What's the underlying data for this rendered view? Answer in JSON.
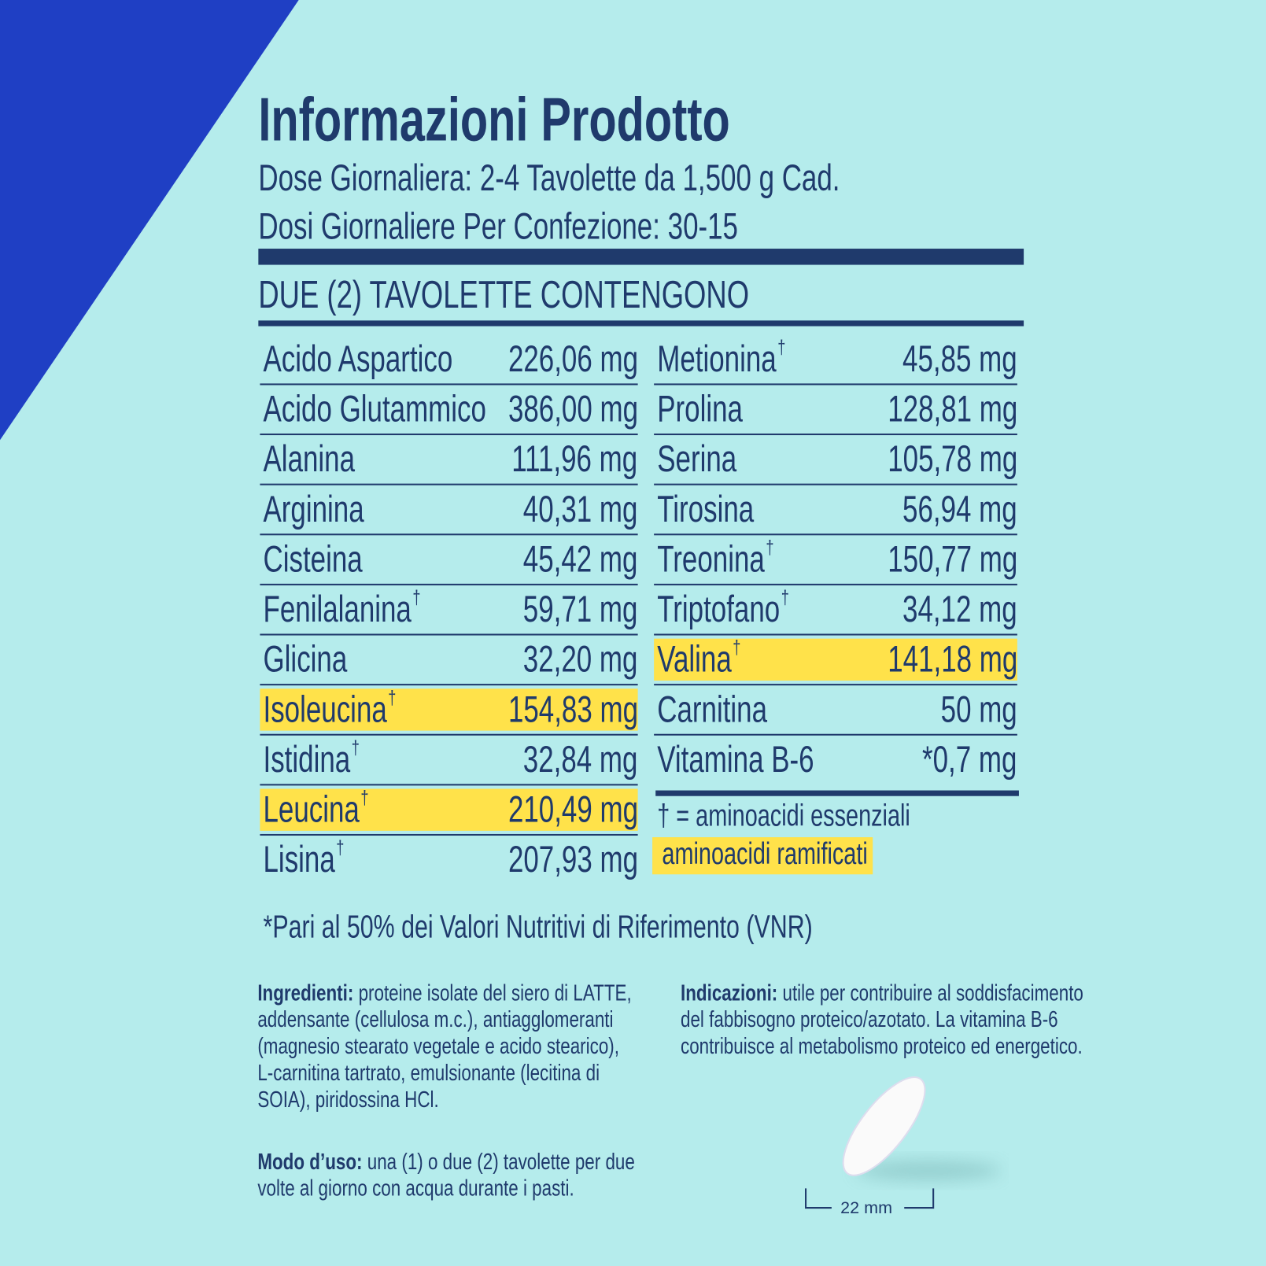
{
  "header": {
    "title": "Informazioni Prodotto",
    "dose": "Dose Giornaliera: 2-4 Tavolette da 1,500 g Cad.",
    "doses_per_pack": "Dosi Giornaliere Per Confezione: 30-15",
    "section": "DUE (2) TAVOLETTE CONTENGONO"
  },
  "table": {
    "left": [
      {
        "name": "Acido Aspartico",
        "value": "226,06 mg"
      },
      {
        "name": "Acido Glutammico",
        "value": "386,00 mg"
      },
      {
        "name": "Alanina",
        "value": "111,96 mg"
      },
      {
        "name": "Arginina",
        "value": "40,31 mg"
      },
      {
        "name": "Cisteina",
        "value": "45,42 mg"
      },
      {
        "name": "Fenilalanina",
        "sup": "†",
        "value": "59,71 mg"
      },
      {
        "name": "Glicina",
        "value": "32,20 mg"
      },
      {
        "name": "Isoleucina",
        "sup": "†",
        "value": "154,83 mg",
        "highlight": true
      },
      {
        "name": "Istidina",
        "sup": "†",
        "value": "32,84 mg"
      },
      {
        "name": "Leucina",
        "sup": "†",
        "value": "210,49 mg",
        "highlight": true
      },
      {
        "name": "Lisina",
        "sup": "†",
        "value": "207,93 mg"
      }
    ],
    "right": [
      {
        "name": "Metionina",
        "sup": "†",
        "value": "45,85 mg"
      },
      {
        "name": "Prolina",
        "value": "128,81 mg"
      },
      {
        "name": "Serina",
        "value": "105,78 mg"
      },
      {
        "name": "Tirosina",
        "value": "56,94 mg"
      },
      {
        "name": "Treonina",
        "sup": "†",
        "value": "150,77 mg"
      },
      {
        "name": "Triptofano",
        "sup": "†",
        "value": "34,12 mg"
      },
      {
        "name": "Valina",
        "sup": "†",
        "value": "141,18 mg",
        "highlight": true
      },
      {
        "name": "Carnitina",
        "value": "50 mg"
      },
      {
        "name": "Vitamina B-6",
        "value": "*0,7 mg"
      }
    ]
  },
  "legend": {
    "essential": "† = aminoacidi essenziali",
    "branched": "aminoacidi ramificati"
  },
  "footnote": "*Pari al 50% dei Valori Nutritivi di Riferimento (VNR)",
  "ingredients": {
    "label": "Ingredienti:",
    "text": "proteine isolate del siero di LATTE, addensante (cellulosa m.c.), antiagglomeranti (magnesio stearato vegetale e acido stearico), L-carnitina tartrato, emulsionante (lecitina di SOIA), piridossina HCl."
  },
  "usage": {
    "label": "Modo d’uso:",
    "text": "una (1) o due (2) tavolette per due volte al giorno con acqua durante i pasti."
  },
  "indications": {
    "label": "Indicazioni:",
    "text": "utile per contribuire al soddisfacimento del fabbisogno proteico/azotato. La vitamina B-6 contribuisce al metabolismo proteico ed energetico."
  },
  "tablet": {
    "size": "22 mm"
  }
}
